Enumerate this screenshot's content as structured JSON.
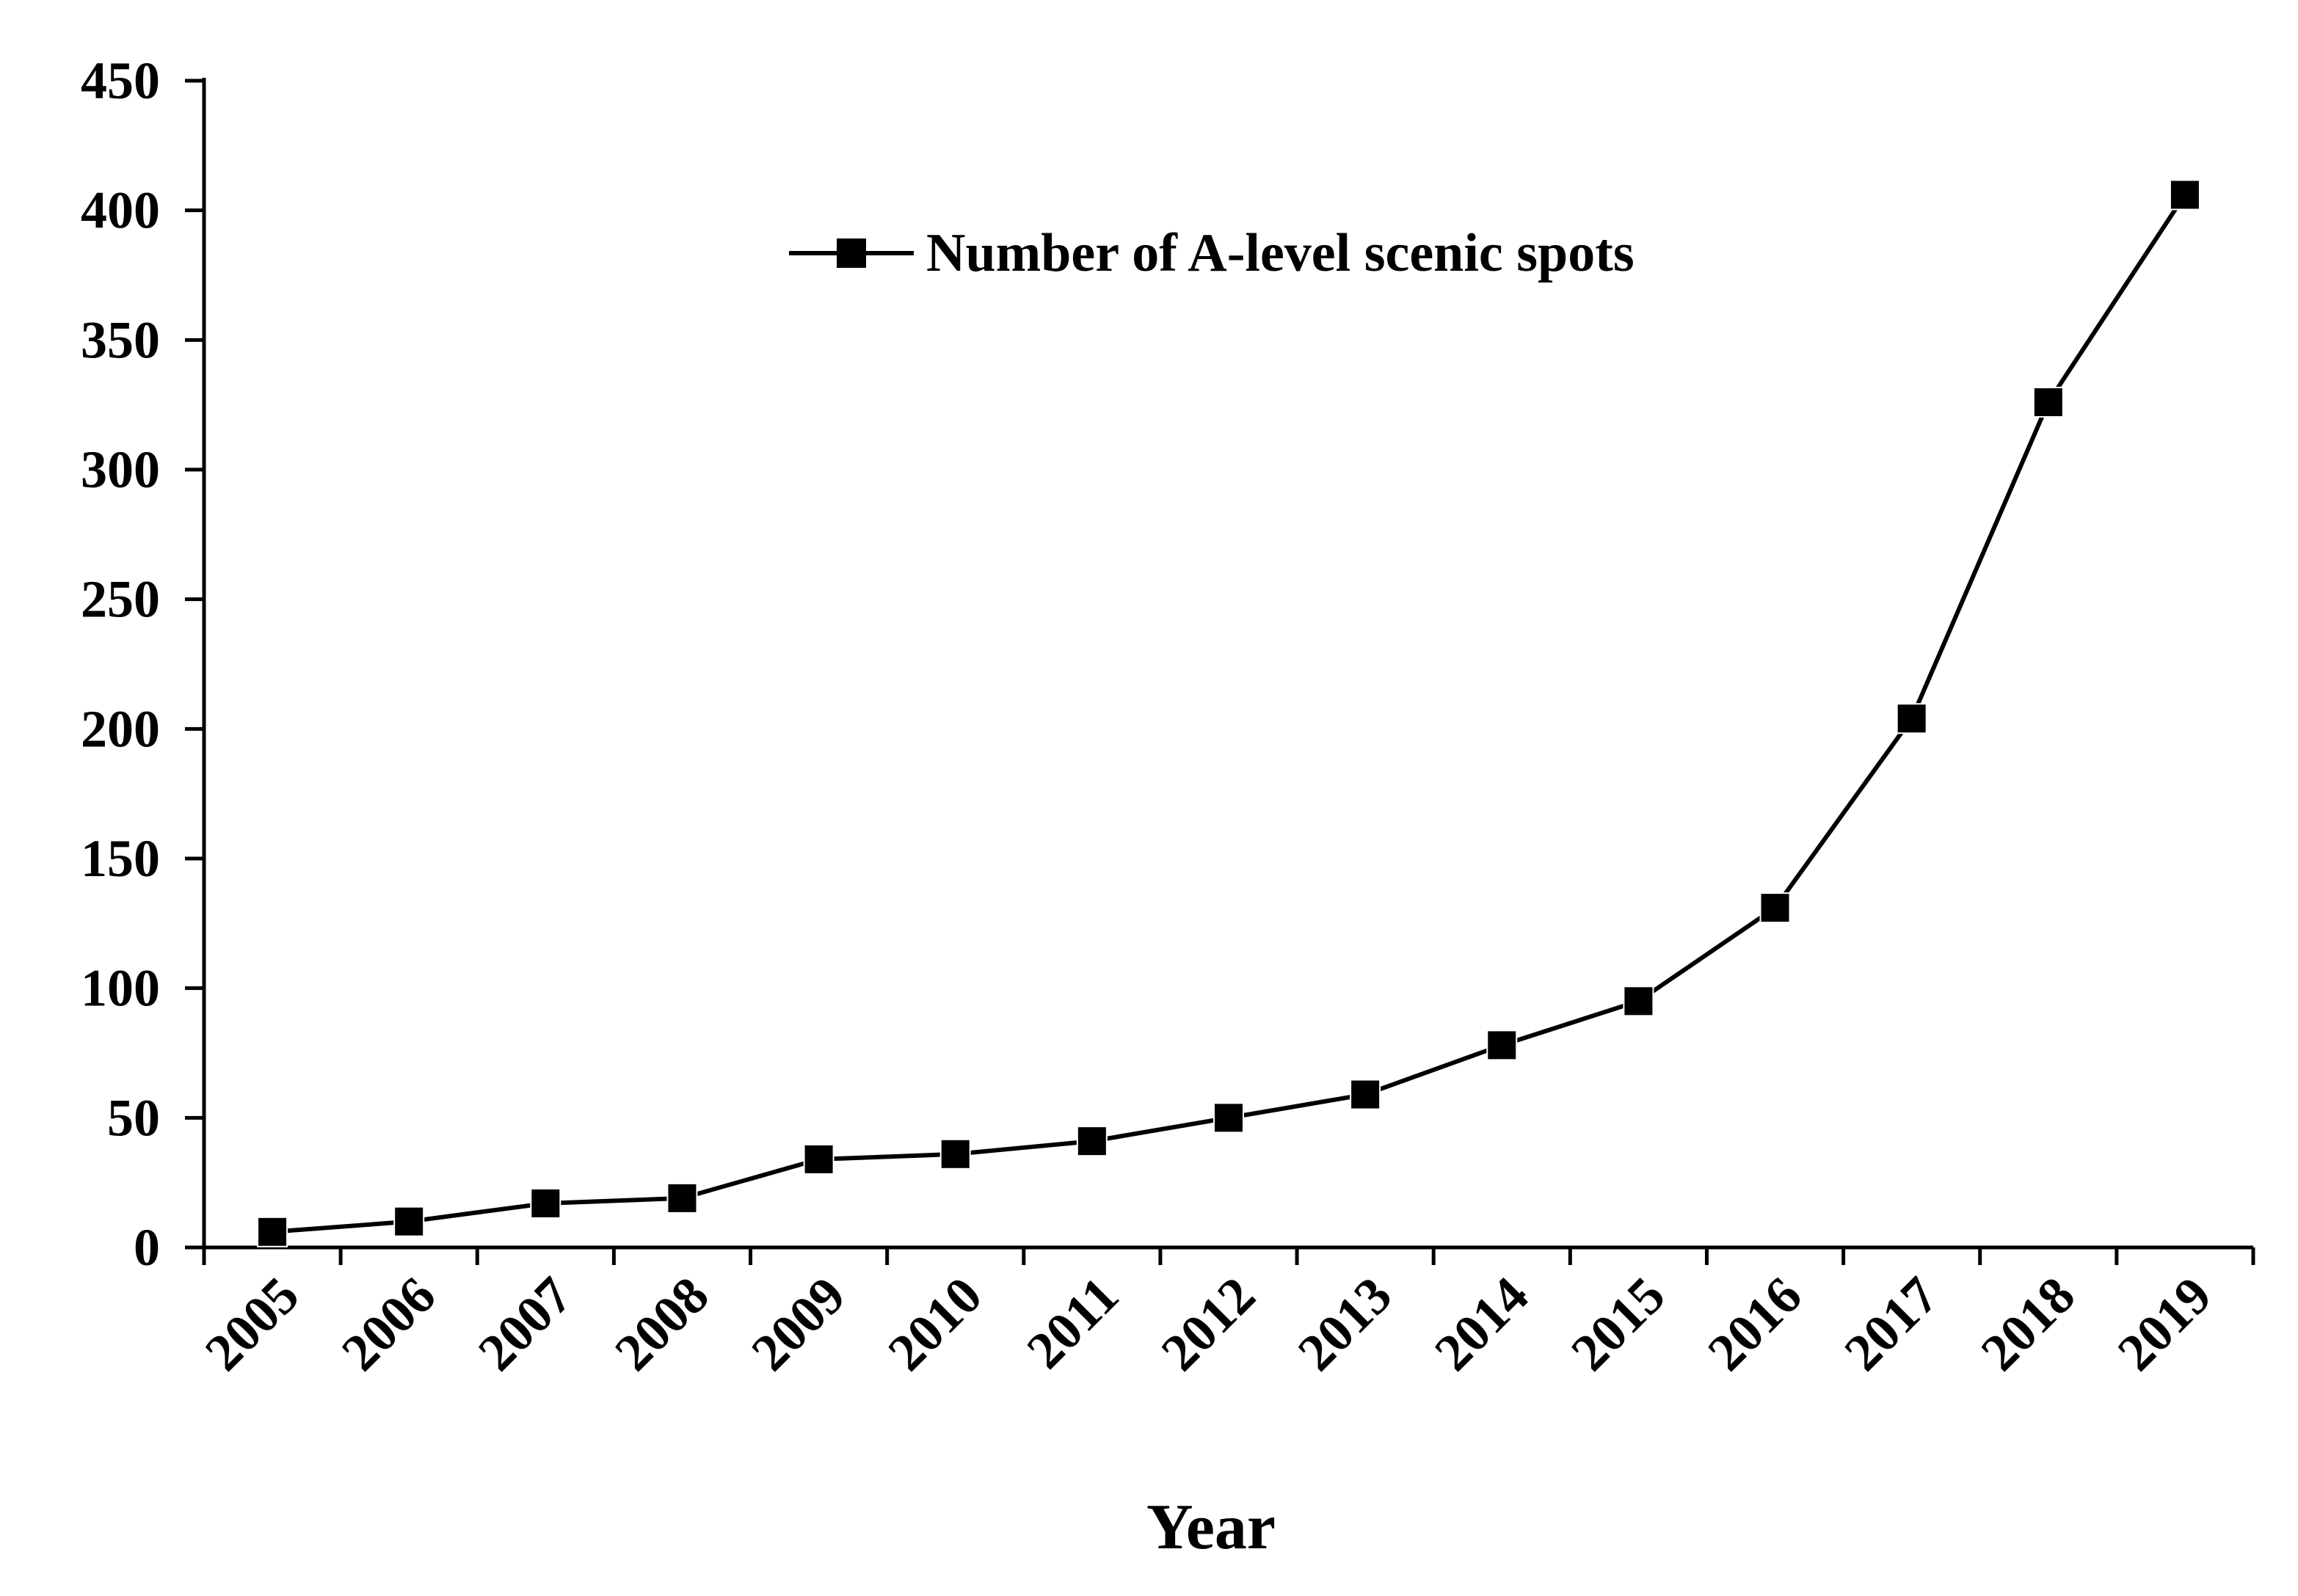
{
  "chart_data": {
    "type": "line",
    "title": "",
    "xlabel": "Year",
    "ylabel": "",
    "ylim": [
      0,
      450
    ],
    "y_ticks": [
      "0",
      "50",
      "100",
      "150",
      "200",
      "250",
      "300",
      "350",
      "400",
      "450"
    ],
    "categories": [
      "2005",
      "2006",
      "2007",
      "2008",
      "2009",
      "2010",
      "2011",
      "2012",
      "2013",
      "2014",
      "2015",
      "2016",
      "2017",
      "2018",
      "2019"
    ],
    "series": [
      {
        "name": "Number of A-level scenic spots",
        "values": [
          6,
          10,
          17,
          19,
          34,
          36,
          41,
          50,
          59,
          78,
          95,
          131,
          204,
          326,
          406
        ],
        "marker": "square",
        "color": "#000000"
      }
    ],
    "grid": false,
    "legend_position": "top-center"
  }
}
